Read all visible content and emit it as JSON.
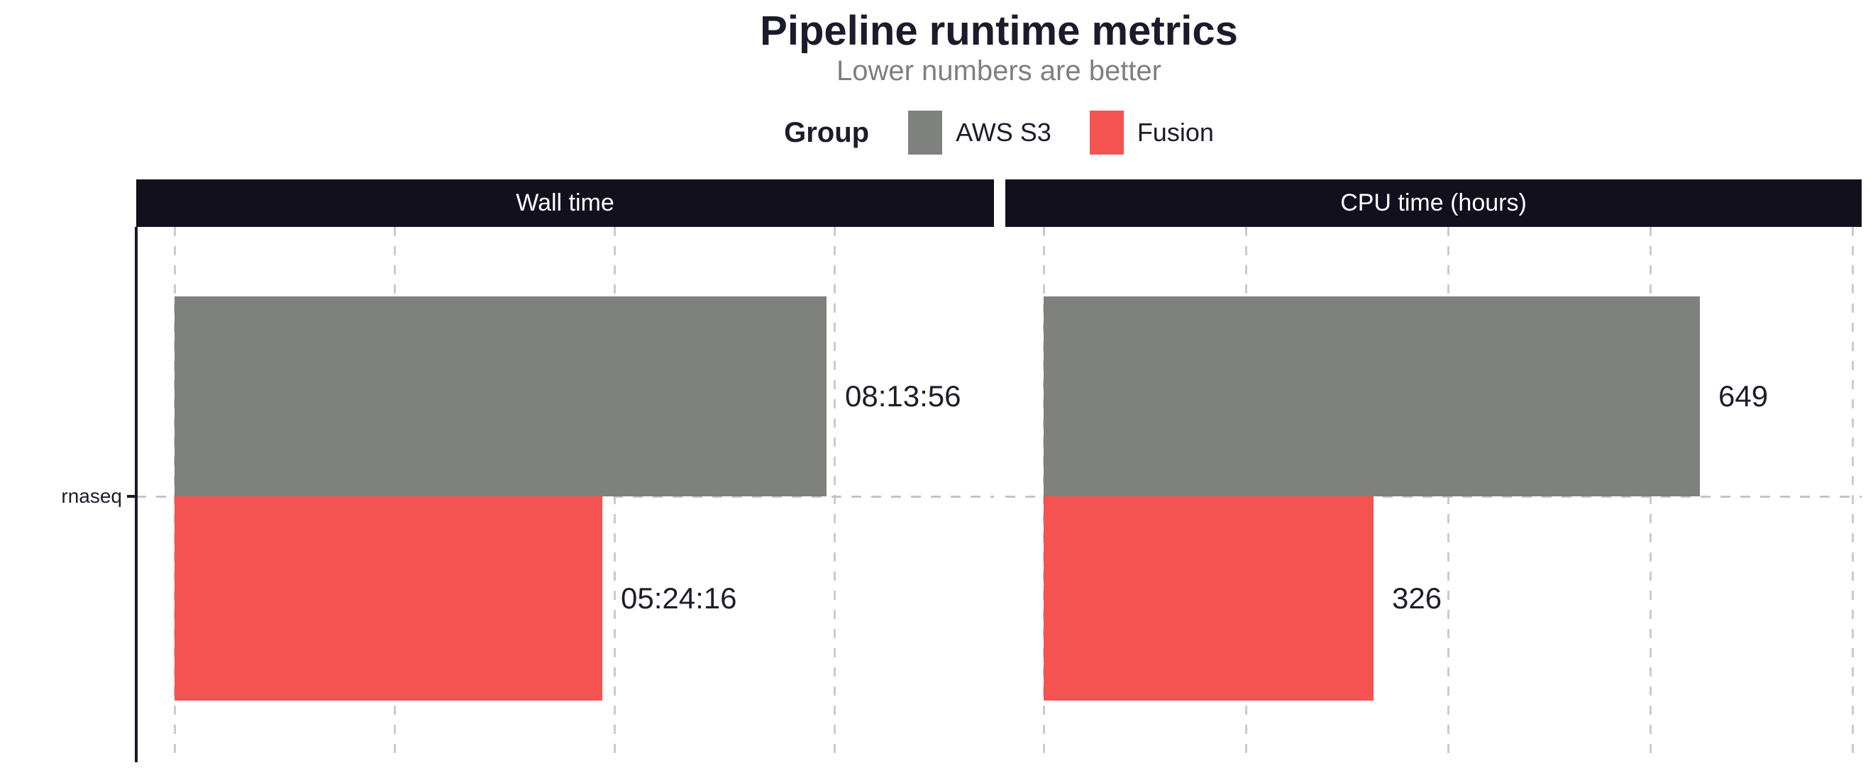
{
  "title": "Pipeline runtime metrics",
  "subtitle": "Lower numbers are better",
  "legend": {
    "title": "Group",
    "entries": [
      {
        "label": "AWS S3",
        "color": "#7f817f"
      },
      {
        "label": "Fusion",
        "color": "#f45352"
      }
    ]
  },
  "y_axis": {
    "category": "rnaseq"
  },
  "colors": {
    "panel_header_bg": "#13101e",
    "panel_header_text": "#ffffff",
    "title_text": "#1b1b2b",
    "subtitle_text": "#7f7f7f",
    "gridline": "#cbcbcb",
    "axis_line": "#1a1a26",
    "aws_s3": "#7f817f",
    "fusion": "#f45352"
  },
  "chart_data": {
    "type": "bar",
    "orientation": "horizontal",
    "categories": [
      "rnaseq"
    ],
    "legend_position": "top",
    "grid": "dashed",
    "facets": [
      {
        "title": "Wall time",
        "unit": "seconds",
        "axis_origin": 0,
        "gridline_step": 10000,
        "gridline_count": 4,
        "bars": [
          {
            "group": "AWS S3",
            "category": "rnaseq",
            "value": 29636,
            "label": "08:13:56",
            "color": "#7f817f"
          },
          {
            "group": "Fusion",
            "category": "rnaseq",
            "value": 19456,
            "label": "05:24:16",
            "color": "#f45352"
          }
        ]
      },
      {
        "title": "CPU time (hours)",
        "unit": "hours",
        "axis_origin": 0,
        "gridline_step": 200,
        "gridline_count": 5,
        "bars": [
          {
            "group": "AWS S3",
            "category": "rnaseq",
            "value": 649,
            "label": "649",
            "color": "#7f817f"
          },
          {
            "group": "Fusion",
            "category": "rnaseq",
            "value": 326,
            "label": "326",
            "color": "#f45352"
          }
        ]
      }
    ]
  }
}
